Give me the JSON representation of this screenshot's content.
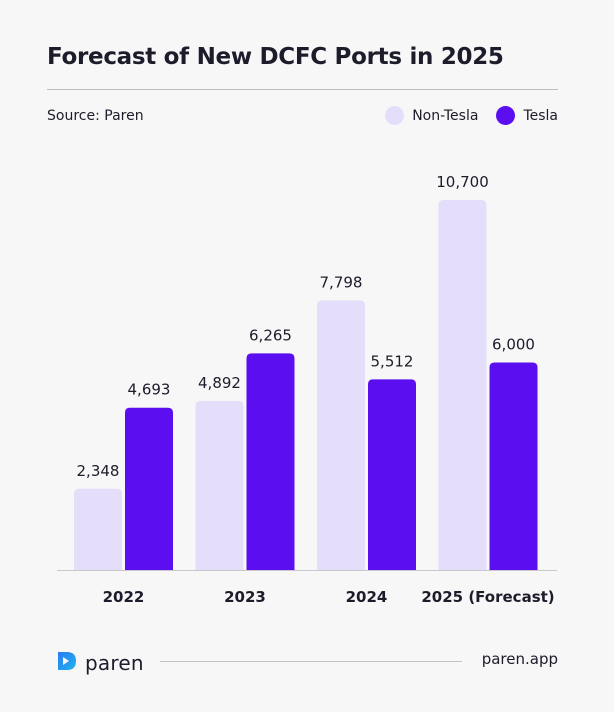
{
  "header": {
    "title": "Forecast of New DCFC Ports in 2025",
    "source": "Source: Paren"
  },
  "legend": [
    {
      "label": "Non-Tesla",
      "color": "#e4defb"
    },
    {
      "label": "Tesla",
      "color": "#5b0ff0"
    }
  ],
  "chart_data": {
    "type": "bar",
    "title": "Forecast of New DCFC Ports in 2025",
    "categories": [
      "2022",
      "2023",
      "2024",
      "2025 (Forecast)"
    ],
    "series": [
      {
        "name": "Non-Tesla",
        "values": [
          2348,
          4892,
          7798,
          10700
        ],
        "labels": [
          "2,348",
          "4,892",
          "7,798",
          "10,700"
        ],
        "color": "#e4defb"
      },
      {
        "name": "Tesla",
        "values": [
          4693,
          6265,
          5512,
          6000
        ],
        "labels": [
          "4,693",
          "6,265",
          "5,512",
          "6,000"
        ],
        "color": "#5b0ff0"
      }
    ],
    "legend_position": "top-right",
    "grid": false,
    "ylim": [
      0,
      10700
    ]
  },
  "footer": {
    "brand": "paren",
    "site": "paren.app",
    "logo_icon": "paren-logo-icon"
  }
}
